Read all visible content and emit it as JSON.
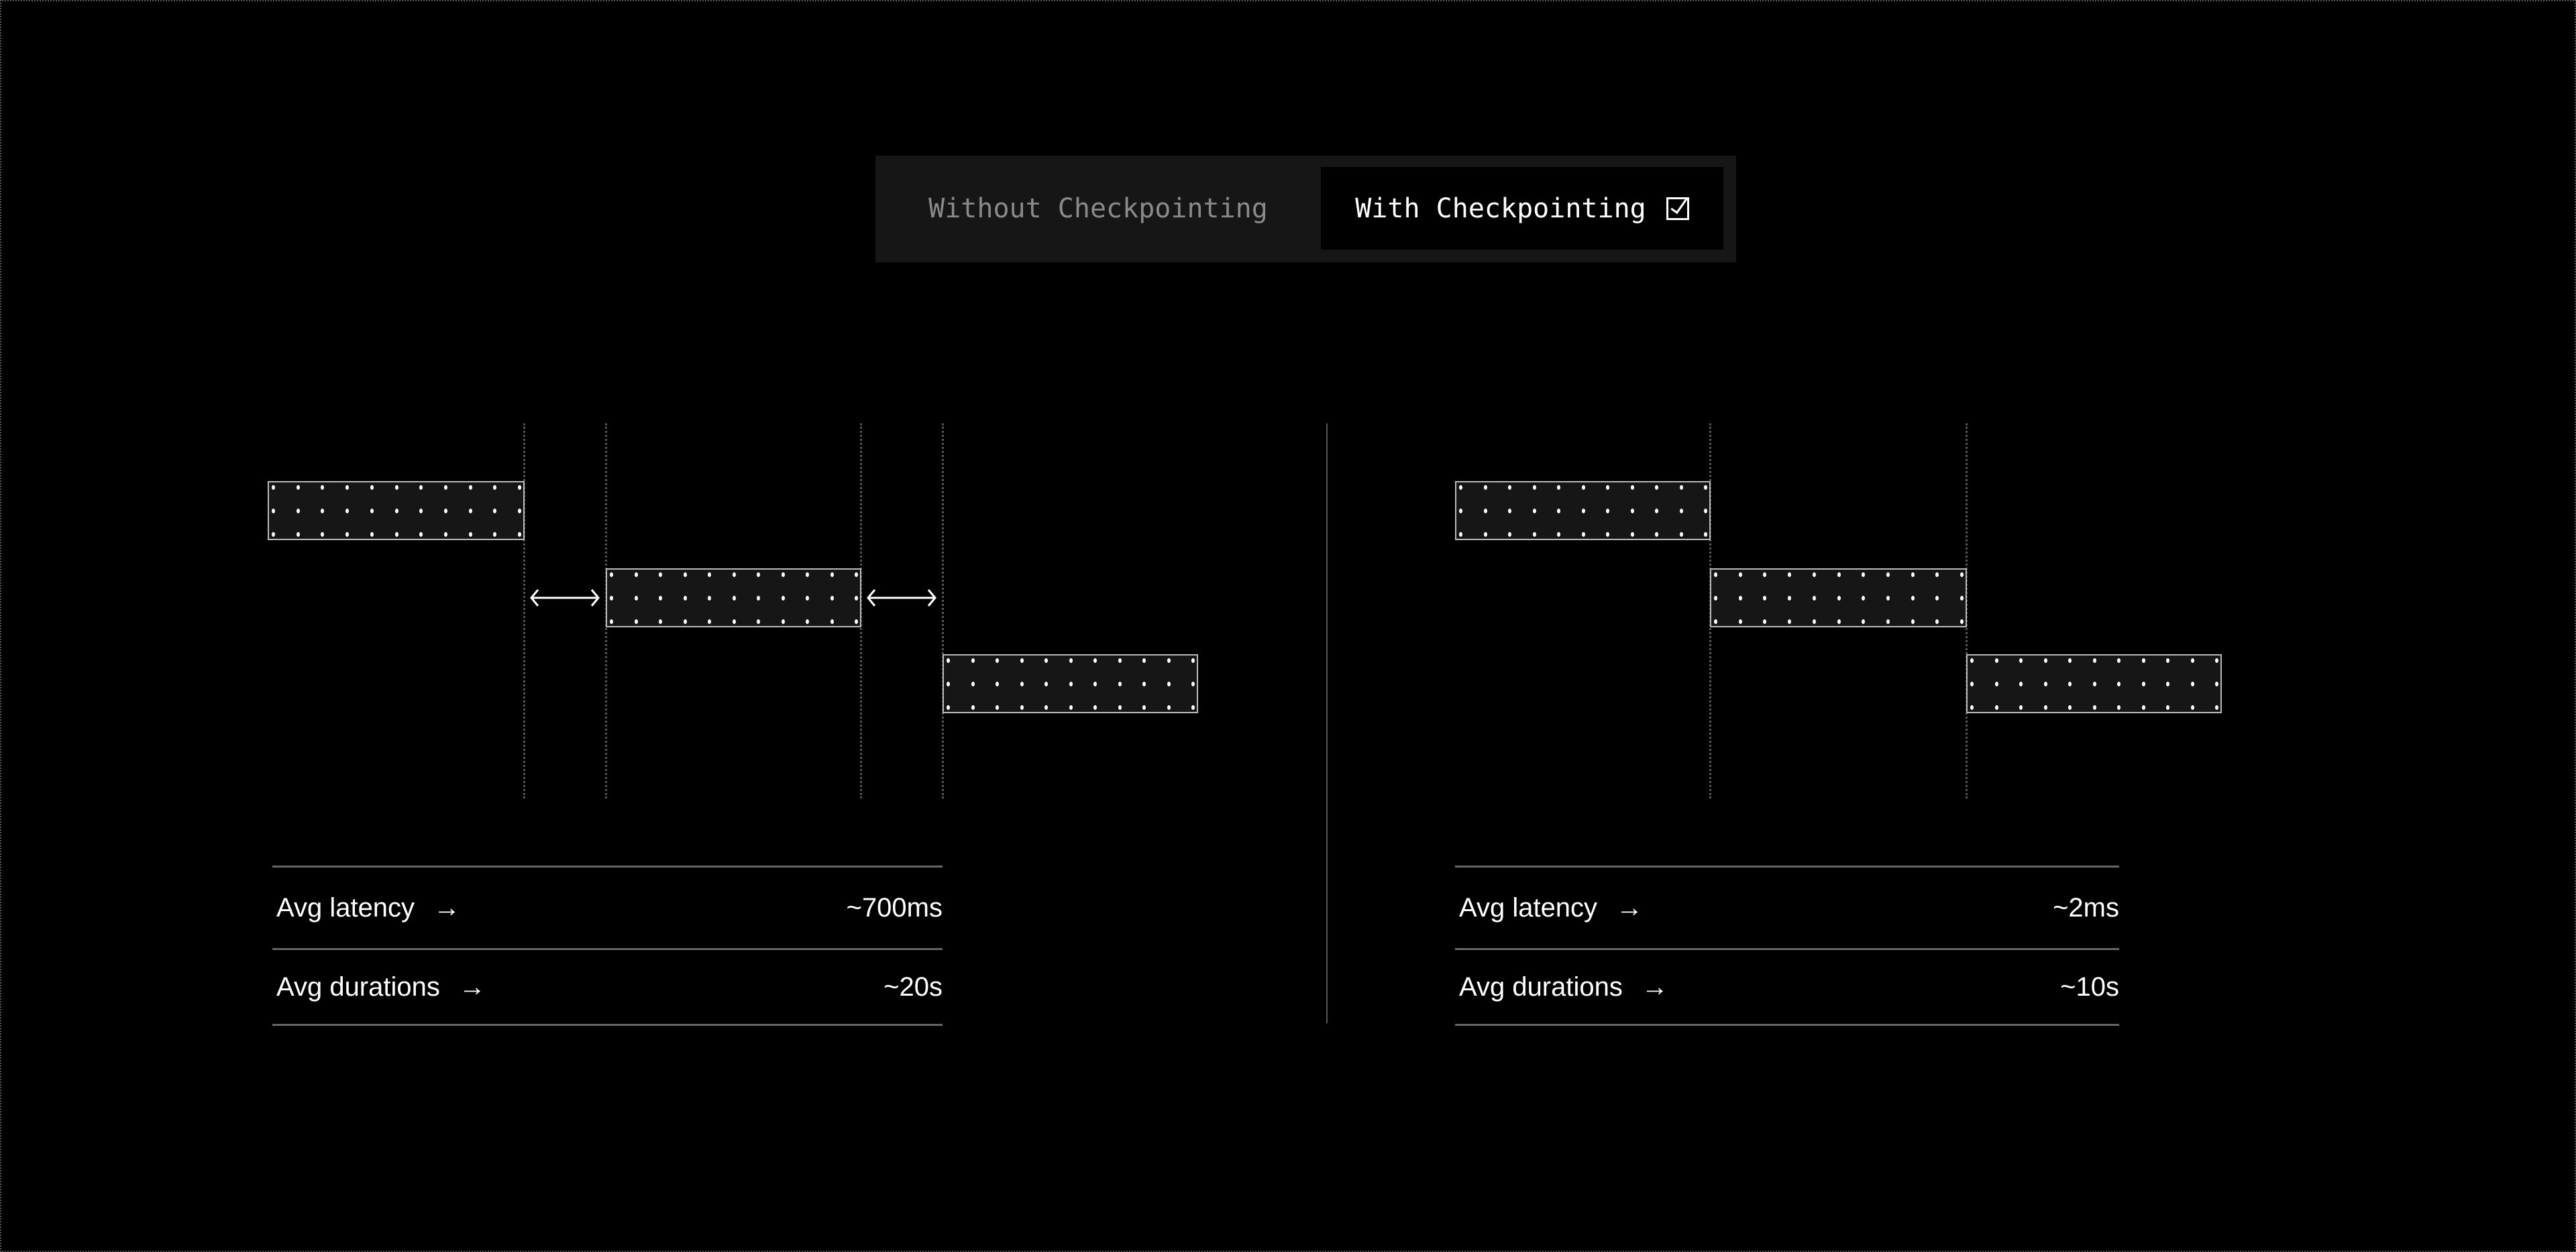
{
  "toggle": {
    "options": [
      {
        "label": "Without Checkpointing",
        "selected": false
      },
      {
        "label": "With Checkpointing",
        "selected": true,
        "icon": "checkbox-checked-icon"
      }
    ]
  },
  "left_panel": {
    "stats": [
      {
        "label": "Avg latency",
        "icon": "arrow-right-icon",
        "value": "~700ms"
      },
      {
        "label": "Avg durations",
        "icon": "arrow-right-icon",
        "value": "~20s"
      }
    ]
  },
  "right_panel": {
    "stats": [
      {
        "label": "Avg latency",
        "icon": "arrow-right-icon",
        "value": "~2ms"
      },
      {
        "label": "Avg durations",
        "icon": "arrow-right-icon",
        "value": "~10s"
      }
    ]
  },
  "colors": {
    "background": "#000000",
    "bar_fill": "#161616",
    "toggle_bg": "#161616",
    "inactive_text": "#8a8a8a"
  }
}
